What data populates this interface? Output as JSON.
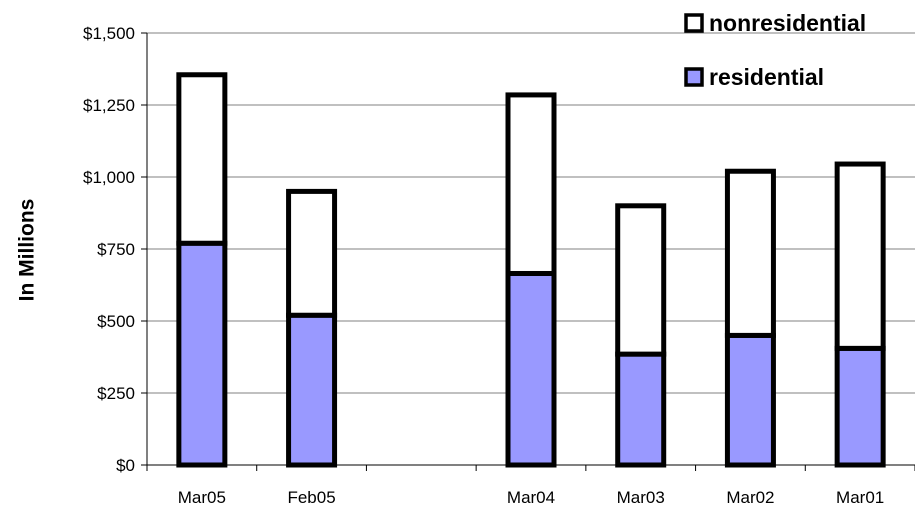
{
  "chart_data": {
    "type": "bar",
    "stacked": true,
    "categories": [
      "Mar05",
      "Feb05",
      "",
      "Mar04",
      "Mar03",
      "Mar02",
      "Mar01"
    ],
    "series": [
      {
        "name": "residential",
        "values": [
          770,
          520,
          null,
          665,
          385,
          450,
          405
        ],
        "color": "#9999ff"
      },
      {
        "name": "nonresidential",
        "values": [
          585,
          430,
          null,
          620,
          515,
          570,
          640
        ],
        "color": "#ffffff"
      }
    ],
    "ylabel": "In Millions",
    "xlabel": "",
    "ylim": [
      0,
      1500
    ],
    "yticks": [
      0,
      250,
      500,
      750,
      1000,
      1250,
      1500
    ],
    "ytick_labels": [
      "$0",
      "$250",
      "$500",
      "$750",
      "$1,000",
      "$1,250",
      "$1,500"
    ],
    "grid": true,
    "legend_position": "top-right",
    "legend_order": [
      "nonresidential",
      "residential"
    ]
  }
}
